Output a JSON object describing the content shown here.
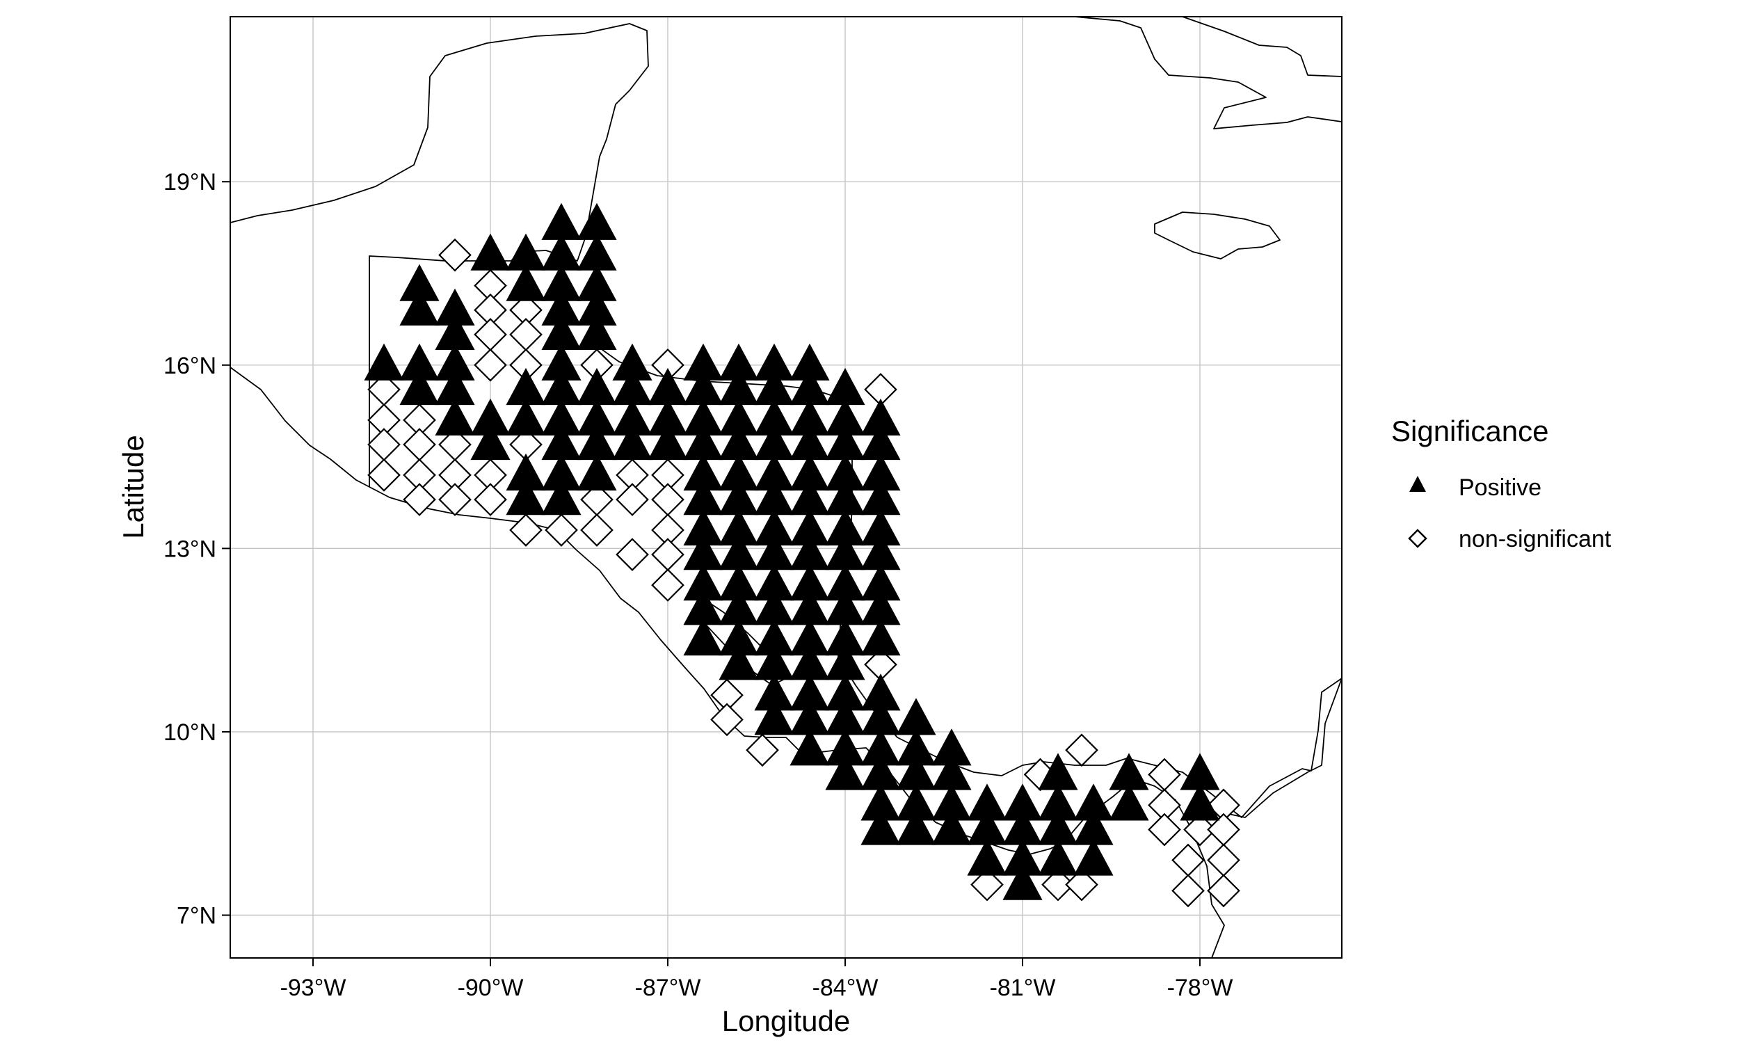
{
  "map": {
    "title": "",
    "xlabel": "Longitude",
    "ylabel": "Latitude",
    "x_range": [
      -94.4,
      -75.6
    ],
    "y_range": [
      6.3,
      21.7
    ],
    "x_ticks": [
      {
        "value": -93,
        "label": "-93°W"
      },
      {
        "value": -90,
        "label": "-90°W"
      },
      {
        "value": -87,
        "label": "-87°W"
      },
      {
        "value": -84,
        "label": "-84°W"
      },
      {
        "value": -81,
        "label": "-81°W"
      },
      {
        "value": -78,
        "label": "-78°W"
      }
    ],
    "y_ticks": [
      {
        "value": 7,
        "label": "7°N"
      },
      {
        "value": 10,
        "label": "10°N"
      },
      {
        "value": 13,
        "label": "13°N"
      },
      {
        "value": 16,
        "label": "16°N"
      },
      {
        "value": 19,
        "label": "19°N"
      }
    ],
    "grid": true,
    "legend": {
      "title": "Significance",
      "placement": "right",
      "entries": [
        {
          "key": "positive",
          "label": "Positive",
          "symbol": "triangle"
        },
        {
          "key": "nonsig",
          "label": "non-significant",
          "symbol": "diamond"
        }
      ]
    },
    "colors": {
      "ink": "#000000",
      "grid": "#c4c4c4",
      "background": "#ffffff"
    }
  },
  "chart_data": {
    "type": "scatter",
    "grid_step_deg": 0.6,
    "series": [
      {
        "key": "positive",
        "rows": [
          {
            "lat": 18.3,
            "lons": [
              -88.8,
              -88.2
            ]
          },
          {
            "lat": 17.8,
            "lons": [
              -90.0,
              -89.4,
              -88.8,
              -88.2
            ]
          },
          {
            "lat": 17.3,
            "lons": [
              -91.2,
              -89.4,
              -88.8,
              -88.2
            ]
          },
          {
            "lat": 16.9,
            "lons": [
              -91.2,
              -90.6,
              -88.8,
              -88.2
            ]
          },
          {
            "lat": 16.5,
            "lons": [
              -90.6,
              -88.8,
              -88.2
            ]
          },
          {
            "lat": 16.0,
            "lons": [
              -91.8,
              -91.2,
              -90.6,
              -88.8,
              -87.6,
              -86.4,
              -85.8,
              -85.2,
              -84.6
            ]
          },
          {
            "lat": 15.6,
            "lons": [
              -91.2,
              -90.6,
              -89.4,
              -88.8,
              -88.2,
              -87.6,
              -87.0,
              -86.4,
              -85.8,
              -85.2,
              -84.6,
              -84.0
            ]
          },
          {
            "lat": 15.1,
            "lons": [
              -90.6,
              -90.0,
              -89.4,
              -88.8,
              -88.2,
              -87.6,
              -87.0,
              -86.4,
              -85.8,
              -85.2,
              -84.6,
              -84.0,
              -83.4
            ]
          },
          {
            "lat": 14.7,
            "lons": [
              -90.0,
              -88.8,
              -88.2,
              -87.6,
              -87.0,
              -86.4,
              -85.8,
              -85.2,
              -84.6,
              -84.0,
              -83.4
            ]
          },
          {
            "lat": 14.2,
            "lons": [
              -89.4,
              -88.8,
              -88.2,
              -86.4,
              -85.8,
              -85.2,
              -84.6,
              -84.0,
              -83.4
            ]
          },
          {
            "lat": 13.8,
            "lons": [
              -89.4,
              -88.8,
              -86.4,
              -85.8,
              -85.2,
              -84.6,
              -84.0,
              -83.4
            ]
          },
          {
            "lat": 13.3,
            "lons": [
              -86.4,
              -85.8,
              -85.2,
              -84.6,
              -84.0,
              -83.4
            ]
          },
          {
            "lat": 12.9,
            "lons": [
              -86.4,
              -85.8,
              -85.2,
              -84.6,
              -84.0,
              -83.4
            ]
          },
          {
            "lat": 12.4,
            "lons": [
              -86.4,
              -85.8,
              -85.2,
              -84.6,
              -84.0,
              -83.4
            ]
          },
          {
            "lat": 12.0,
            "lons": [
              -86.4,
              -85.8,
              -85.2,
              -84.6,
              -84.0,
              -83.4
            ]
          },
          {
            "lat": 11.5,
            "lons": [
              -86.4,
              -85.8,
              -85.2,
              -84.6,
              -84.0,
              -83.4
            ]
          },
          {
            "lat": 11.1,
            "lons": [
              -85.8,
              -85.2,
              -84.6,
              -84.0
            ]
          },
          {
            "lat": 10.6,
            "lons": [
              -85.2,
              -84.6,
              -84.0,
              -83.4
            ]
          },
          {
            "lat": 10.2,
            "lons": [
              -85.2,
              -84.6,
              -84.0,
              -83.4,
              -82.8
            ]
          },
          {
            "lat": 9.7,
            "lons": [
              -84.6,
              -84.0,
              -83.4,
              -82.8,
              -82.2
            ]
          },
          {
            "lat": 9.3,
            "lons": [
              -84.0,
              -83.4,
              -82.8,
              -82.2,
              -80.4,
              -79.2,
              -78.0
            ]
          },
          {
            "lat": 8.8,
            "lons": [
              -83.4,
              -82.8,
              -82.2,
              -81.6,
              -81.0,
              -80.4,
              -79.8,
              -79.2,
              -78.0
            ]
          },
          {
            "lat": 8.4,
            "lons": [
              -83.4,
              -82.8,
              -82.2,
              -81.6,
              -81.0,
              -80.4,
              -79.8
            ]
          },
          {
            "lat": 7.9,
            "lons": [
              -81.6,
              -81.0,
              -80.4,
              -79.8
            ]
          },
          {
            "lat": 7.5,
            "lons": [
              -81.0
            ]
          }
        ]
      },
      {
        "key": "nonsig",
        "rows": [
          {
            "lat": 17.8,
            "lons": [
              -90.6
            ]
          },
          {
            "lat": 17.3,
            "lons": [
              -90.0
            ]
          },
          {
            "lat": 16.9,
            "lons": [
              -90.0,
              -89.4
            ]
          },
          {
            "lat": 16.5,
            "lons": [
              -90.0,
              -89.4
            ]
          },
          {
            "lat": 16.0,
            "lons": [
              -90.0,
              -89.4,
              -88.2,
              -87.0
            ]
          },
          {
            "lat": 15.6,
            "lons": [
              -91.8,
              -83.4
            ]
          },
          {
            "lat": 15.1,
            "lons": [
              -91.8,
              -91.2
            ]
          },
          {
            "lat": 14.7,
            "lons": [
              -91.8,
              -91.2,
              -90.6,
              -89.4
            ]
          },
          {
            "lat": 14.2,
            "lons": [
              -91.8,
              -91.2,
              -90.6,
              -90.0,
              -87.6,
              -87.0
            ]
          },
          {
            "lat": 13.8,
            "lons": [
              -91.2,
              -90.6,
              -90.0,
              -88.2,
              -87.6,
              -87.0
            ]
          },
          {
            "lat": 13.3,
            "lons": [
              -89.4,
              -88.8,
              -88.2,
              -87.0
            ]
          },
          {
            "lat": 12.9,
            "lons": [
              -87.6,
              -87.0
            ]
          },
          {
            "lat": 12.4,
            "lons": [
              -87.0
            ]
          },
          {
            "lat": 11.1,
            "lons": [
              -83.4
            ]
          },
          {
            "lat": 10.6,
            "lons": [
              -86.0
            ]
          },
          {
            "lat": 10.2,
            "lons": [
              -86.0
            ]
          },
          {
            "lat": 9.7,
            "lons": [
              -85.4,
              -80.0
            ]
          },
          {
            "lat": 9.3,
            "lons": [
              -80.7,
              -78.6
            ]
          },
          {
            "lat": 8.8,
            "lons": [
              -78.6,
              -77.6
            ]
          },
          {
            "lat": 8.4,
            "lons": [
              -78.6,
              -78.0,
              -77.6
            ]
          },
          {
            "lat": 7.9,
            "lons": [
              -78.2,
              -77.6
            ]
          },
          {
            "lat": 7.5,
            "lons": [
              -81.6,
              -80.4,
              -80.0
            ]
          },
          {
            "lat": 7.4,
            "lons": [
              -78.2,
              -77.6
            ]
          }
        ]
      }
    ]
  }
}
